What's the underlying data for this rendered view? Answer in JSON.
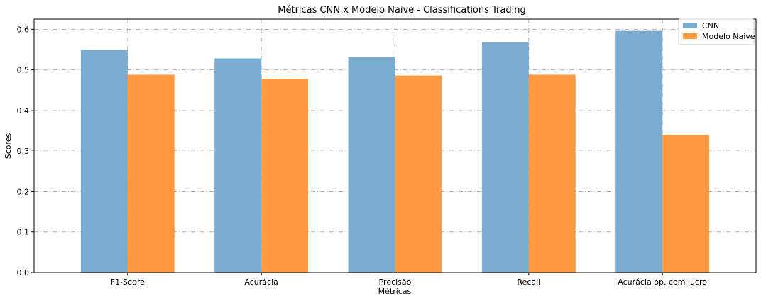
{
  "chart_data": {
    "type": "bar",
    "title": "Métricas CNN x Modelo Naive - Classifications Trading",
    "xlabel": "Métricas",
    "ylabel": "Scores",
    "categories": [
      "F1-Score",
      "Acurácia",
      "Precisão",
      "Recall",
      "Acurácia op. com lucro"
    ],
    "series": [
      {
        "name": "CNN",
        "color": "#7aacd1",
        "values": [
          0.549,
          0.528,
          0.531,
          0.568,
          0.596
        ]
      },
      {
        "name": "Modelo Naive",
        "color": "#ff9a42",
        "values": [
          0.488,
          0.478,
          0.486,
          0.488,
          0.34
        ]
      }
    ],
    "ylim": [
      0,
      0.625
    ],
    "yticks": [
      0.0,
      0.1,
      0.2,
      0.3,
      0.4,
      0.5,
      0.6
    ],
    "ytick_labels": [
      "0.0",
      "0.1",
      "0.2",
      "0.3",
      "0.4",
      "0.5",
      "0.6"
    ],
    "grid": true,
    "legend_position": "top-right"
  }
}
